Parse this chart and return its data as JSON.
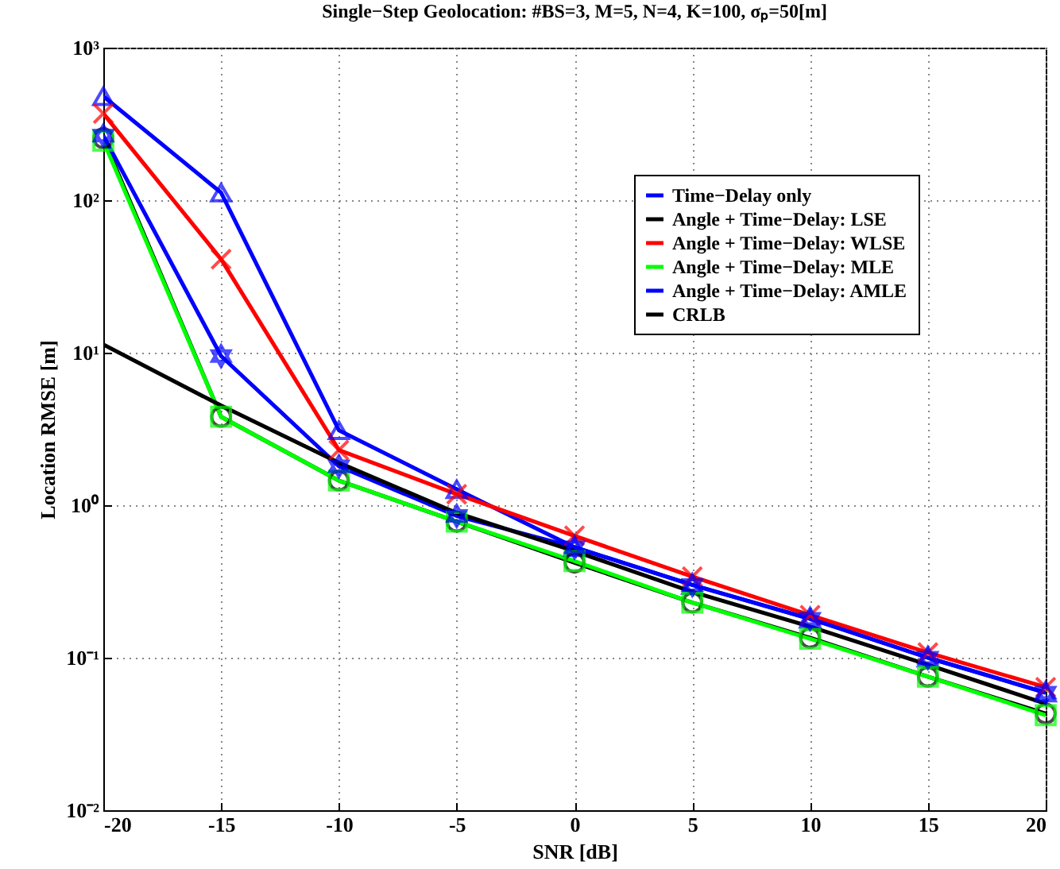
{
  "chart_data": {
    "type": "line",
    "title": "Single−Step Geolocation: #BS=3, M=5, N=4, K=100, σₚ=50[m]",
    "xlabel": "SNR [dB]",
    "ylabel": "Location RMSE [m]",
    "x": [
      -20,
      -15,
      -10,
      -5,
      0,
      5,
      10,
      15,
      20
    ],
    "series": [
      {
        "name": "Time−Delay only",
        "color": "#0000ff",
        "marker": "triangle",
        "values": [
          480,
          112,
          3.1,
          1.27,
          0.53,
          0.3,
          0.18,
          0.1,
          0.059
        ]
      },
      {
        "name": "Angle + Time−Delay: LSE",
        "color": "#000000",
        "marker": "circle",
        "values": [
          255,
          3.8,
          1.45,
          0.78,
          0.42,
          0.23,
          0.135,
          0.075,
          0.043
        ]
      },
      {
        "name": "Angle + Time−Delay: WLSE",
        "color": "#ff0000",
        "marker": "cross",
        "values": [
          370,
          41,
          2.3,
          1.18,
          0.63,
          0.34,
          0.19,
          0.108,
          0.064
        ]
      },
      {
        "name": "Angle + Time−Delay: MLE",
        "color": "#00ff00",
        "marker": "square",
        "values": [
          245,
          3.8,
          1.45,
          0.78,
          0.43,
          0.23,
          0.133,
          0.075,
          0.042
        ]
      },
      {
        "name": "Angle + Time−Delay: AMLE",
        "color": "#0000ff",
        "marker": "star",
        "values": [
          265,
          9.5,
          1.8,
          0.85,
          0.53,
          0.3,
          0.18,
          0.1,
          0.059
        ]
      },
      {
        "name": "CRLB",
        "color": "#000000",
        "marker": "none",
        "values": [
          11.3,
          4.5,
          1.9,
          0.89,
          0.5,
          0.27,
          0.16,
          0.09,
          0.05
        ]
      }
    ],
    "log": true,
    "xlim": [
      -20,
      20
    ],
    "xticks": [
      -20,
      -15,
      -10,
      -5,
      0,
      5,
      10,
      15,
      20
    ],
    "ylim": [
      0.01,
      1000
    ],
    "yticks": [
      {
        "value": 0.01,
        "label": "10⁻²"
      },
      {
        "value": 0.1,
        "label": "10⁻¹"
      },
      {
        "value": 1,
        "label": "10⁰"
      },
      {
        "value": 10,
        "label": "10¹"
      },
      {
        "value": 100,
        "label": "10²"
      },
      {
        "value": 1000,
        "label": "10³"
      }
    ],
    "grid": true,
    "legend": "top right",
    "line_style": "solid"
  }
}
